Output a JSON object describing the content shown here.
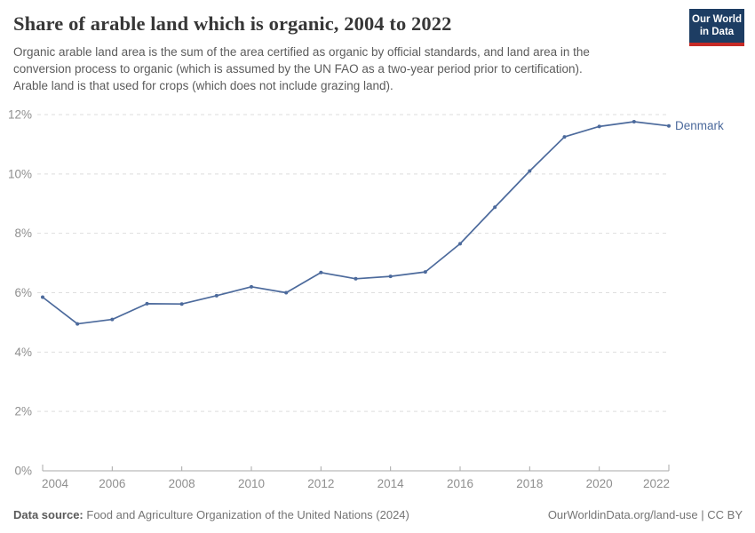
{
  "header": {
    "title": "Share of arable land which is organic, 2004 to 2022",
    "subtitle_lines": [
      "Organic arable land area is the sum of the area certified as organic by official standards, and land area in the",
      "conversion process to organic (which is assumed by the UN FAO as a two-year period prior to certification).",
      "Arable land is that used for crops (which does not include grazing land)."
    ],
    "logo": {
      "line1": "Our World",
      "line2": "in Data",
      "bg_color": "#1d3d63",
      "accent_color": "#c62a26"
    }
  },
  "chart_data": {
    "type": "line",
    "title": "Share of arable land which is organic, 2004 to 2022",
    "xlabel": "",
    "ylabel": "",
    "unit": "%",
    "xlim": [
      2004,
      2022
    ],
    "ylim": [
      0,
      12
    ],
    "xticks": [
      2004,
      2006,
      2008,
      2010,
      2012,
      2014,
      2016,
      2018,
      2020,
      2022
    ],
    "yticks": [
      0,
      2,
      4,
      6,
      8,
      10,
      12
    ],
    "grid": "horizontal-dashed",
    "legend_position": "end-of-line-label",
    "series": [
      {
        "name": "Denmark",
        "color": "#4C6A9C",
        "x": [
          2004,
          2005,
          2006,
          2007,
          2008,
          2009,
          2010,
          2011,
          2012,
          2013,
          2014,
          2015,
          2016,
          2017,
          2018,
          2019,
          2020,
          2021,
          2022
        ],
        "values": [
          5.85,
          4.95,
          5.1,
          5.63,
          5.62,
          5.9,
          6.2,
          6.0,
          6.68,
          6.47,
          6.55,
          6.7,
          7.65,
          8.88,
          10.1,
          11.25,
          11.6,
          11.76,
          11.62
        ]
      }
    ],
    "axis_colors": {
      "tick_label": "#8f8f8f",
      "grid_line": "#dedede",
      "axis_line": "#a8a8a8"
    }
  },
  "footer": {
    "source_label": "Data source:",
    "source_text": "Food and Agriculture Organization of the United Nations (2024)",
    "link_text": "OurWorldinData.org/land-use",
    "separator": " | ",
    "license_text": "CC BY"
  }
}
